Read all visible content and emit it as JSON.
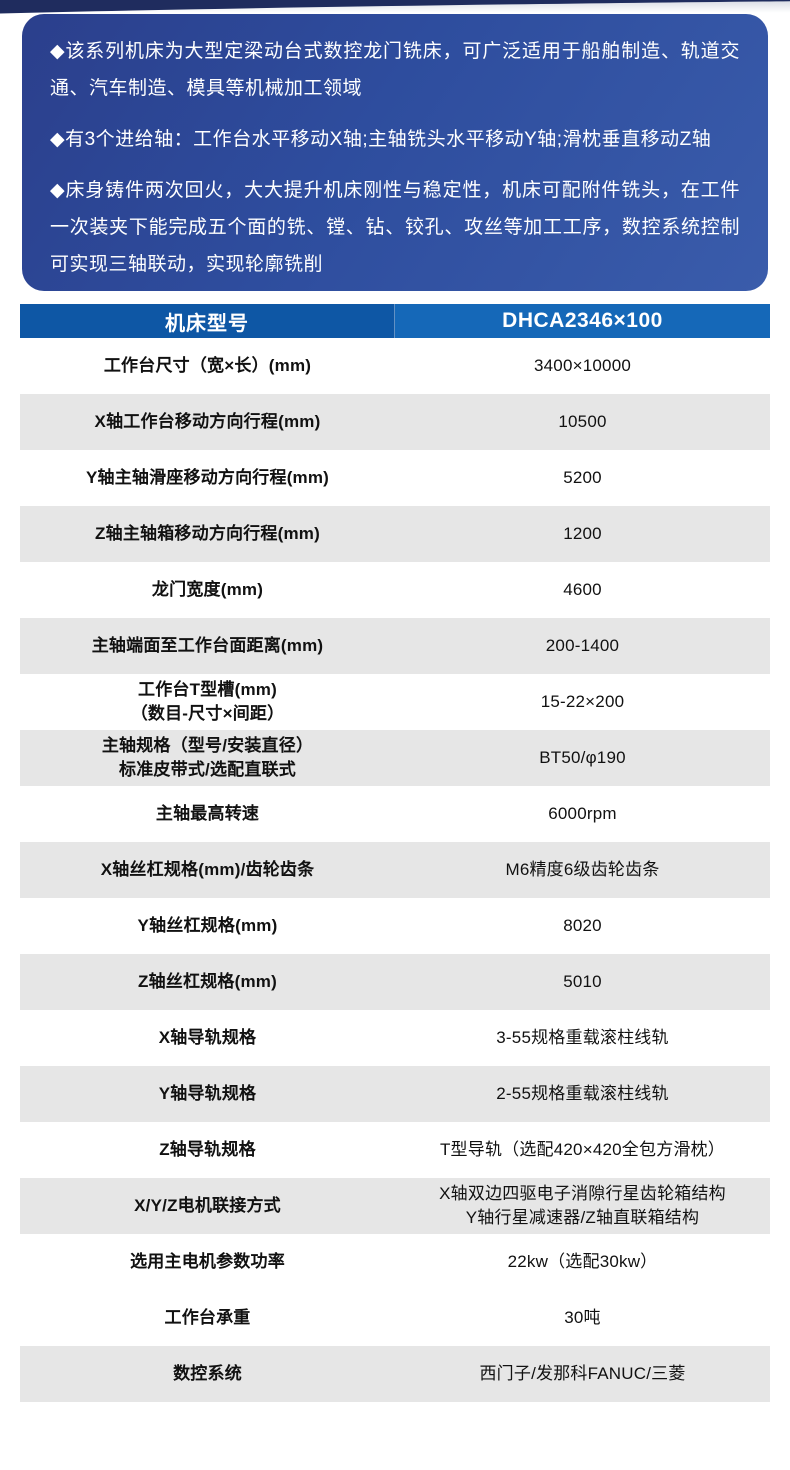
{
  "intro": {
    "bullets": [
      "◆该系列机床为大型定梁动台式数控龙门铣床，可广泛适用于船舶制造、轨道交通、汽车制造、模具等机械加工领域",
      "◆有3个进给轴：工作台水平移动X轴;主轴铣头水平移动Y轴;滑枕垂直移动Z轴",
      "◆床身铸件两次回火，大大提升机床刚性与稳定性，机床可配附件铣头，在工件一次装夹下能完成五个面的铣、镗、钻、铰孔、攻丝等加工工序，数控系统控制可实现三轴联动，实现轮廓铣削"
    ],
    "bg_gradient_start": "#2b3f8c",
    "bg_gradient_mid": "#2e4d9e",
    "bg_gradient_end": "#3a5cab",
    "text_color": "#ffffff"
  },
  "decoration": {
    "top_arc_color": "#1f2c5e"
  },
  "table": {
    "header": {
      "param_label": "机床型号",
      "model": "DHCA2346×100",
      "left_bg": "#0e57a5",
      "right_bg": "#1568b8",
      "text_color": "#ffffff"
    },
    "shaded_row_color": "#e6e6e6",
    "rows": [
      {
        "label": [
          "工作台尺寸（宽×长）(mm)"
        ],
        "value": [
          "3400×10000"
        ],
        "shaded": false
      },
      {
        "label": [
          "X轴工作台移动方向行程(mm)"
        ],
        "value": [
          "10500"
        ],
        "shaded": true
      },
      {
        "label": [
          "Y轴主轴滑座移动方向行程(mm)"
        ],
        "value": [
          "5200"
        ],
        "shaded": false
      },
      {
        "label": [
          "Z轴主轴箱移动方向行程(mm)"
        ],
        "value": [
          "1200"
        ],
        "shaded": true
      },
      {
        "label": [
          "龙门宽度(mm)"
        ],
        "value": [
          "4600"
        ],
        "shaded": false
      },
      {
        "label": [
          "主轴端面至工作台面距离(mm)"
        ],
        "value": [
          "200-1400"
        ],
        "shaded": true
      },
      {
        "label": [
          "工作台T型槽(mm)",
          "（数目-尺寸×间距）"
        ],
        "value": [
          "15-22×200"
        ],
        "shaded": false
      },
      {
        "label": [
          "主轴规格（型号/安装直径）",
          "标准皮带式/选配直联式"
        ],
        "value": [
          "BT50/φ190"
        ],
        "shaded": true
      },
      {
        "label": [
          "主轴最高转速"
        ],
        "value": [
          "6000rpm"
        ],
        "shaded": false
      },
      {
        "label": [
          "X轴丝杠规格(mm)/齿轮齿条"
        ],
        "value": [
          "M6精度6级齿轮齿条"
        ],
        "shaded": true
      },
      {
        "label": [
          "Y轴丝杠规格(mm)"
        ],
        "value": [
          "8020"
        ],
        "shaded": false
      },
      {
        "label": [
          "Z轴丝杠规格(mm)"
        ],
        "value": [
          "5010"
        ],
        "shaded": true
      },
      {
        "label": [
          "X轴导轨规格"
        ],
        "value": [
          "3-55规格重载滚柱线轨"
        ],
        "shaded": false
      },
      {
        "label": [
          "Y轴导轨规格"
        ],
        "value": [
          "2-55规格重载滚柱线轨"
        ],
        "shaded": true
      },
      {
        "label": [
          "Z轴导轨规格"
        ],
        "value": [
          "T型导轨（选配420×420全包方滑枕）"
        ],
        "shaded": false
      },
      {
        "label": [
          "X/Y/Z电机联接方式"
        ],
        "value": [
          "X轴双边四驱电子消隙行星齿轮箱结构",
          "Y轴行星减速器/Z轴直联箱结构"
        ],
        "shaded": true
      },
      {
        "label": [
          "选用主电机参数功率"
        ],
        "value": [
          "22kw（选配30kw）"
        ],
        "shaded": false
      },
      {
        "label": [
          "工作台承重"
        ],
        "value": [
          "30吨"
        ],
        "shaded": false
      },
      {
        "label": [
          "数控系统"
        ],
        "value": [
          "西门子/发那科FANUC/三菱"
        ],
        "shaded": true
      }
    ]
  }
}
